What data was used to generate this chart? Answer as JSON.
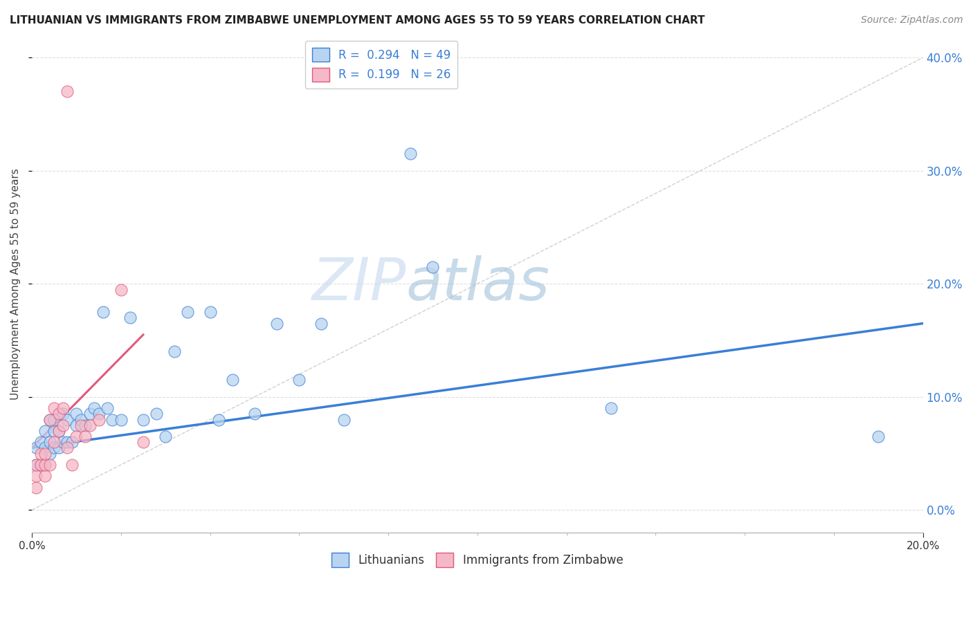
{
  "title": "LITHUANIAN VS IMMIGRANTS FROM ZIMBABWE UNEMPLOYMENT AMONG AGES 55 TO 59 YEARS CORRELATION CHART",
  "source": "Source: ZipAtlas.com",
  "ylabel": "Unemployment Among Ages 55 to 59 years",
  "xlim": [
    0,
    0.2
  ],
  "ylim": [
    -0.02,
    0.42
  ],
  "ylim_data": [
    0,
    0.4
  ],
  "xticks_major": [
    0.0,
    0.2
  ],
  "xticks_minor": [
    0.02,
    0.04,
    0.06,
    0.08,
    0.1,
    0.12,
    0.14,
    0.16,
    0.18
  ],
  "yticks": [
    0.0,
    0.1,
    0.2,
    0.3,
    0.4
  ],
  "legend_entries": [
    {
      "label_r": "R = ",
      "label_rv": "0.294",
      "label_n": "  N = ",
      "label_nv": "49"
    },
    {
      "label_r": "R = ",
      "label_rv": "0.199",
      "label_n": "  N = ",
      "label_nv": "26"
    }
  ],
  "legend_labels_bottom": [
    "Lithuanians",
    "Immigrants from Zimbabwe"
  ],
  "blue_scatter_x": [
    0.001,
    0.001,
    0.002,
    0.002,
    0.003,
    0.003,
    0.003,
    0.004,
    0.004,
    0.004,
    0.005,
    0.005,
    0.005,
    0.006,
    0.006,
    0.007,
    0.007,
    0.008,
    0.008,
    0.009,
    0.01,
    0.01,
    0.011,
    0.012,
    0.013,
    0.014,
    0.015,
    0.016,
    0.017,
    0.018,
    0.02,
    0.022,
    0.025,
    0.028,
    0.03,
    0.032,
    0.035,
    0.04,
    0.042,
    0.045,
    0.05,
    0.055,
    0.06,
    0.065,
    0.07,
    0.085,
    0.09,
    0.13,
    0.19
  ],
  "blue_scatter_y": [
    0.04,
    0.055,
    0.04,
    0.06,
    0.04,
    0.055,
    0.07,
    0.05,
    0.06,
    0.08,
    0.055,
    0.07,
    0.08,
    0.055,
    0.07,
    0.06,
    0.085,
    0.06,
    0.08,
    0.06,
    0.075,
    0.085,
    0.08,
    0.075,
    0.085,
    0.09,
    0.085,
    0.175,
    0.09,
    0.08,
    0.08,
    0.17,
    0.08,
    0.085,
    0.065,
    0.14,
    0.175,
    0.175,
    0.08,
    0.115,
    0.085,
    0.165,
    0.115,
    0.165,
    0.08,
    0.315,
    0.215,
    0.09,
    0.065
  ],
  "pink_scatter_x": [
    0.001,
    0.001,
    0.001,
    0.002,
    0.002,
    0.003,
    0.003,
    0.003,
    0.004,
    0.004,
    0.005,
    0.005,
    0.006,
    0.006,
    0.007,
    0.007,
    0.008,
    0.009,
    0.01,
    0.011,
    0.012,
    0.013,
    0.015,
    0.02,
    0.025,
    0.008
  ],
  "pink_scatter_y": [
    0.02,
    0.03,
    0.04,
    0.04,
    0.05,
    0.03,
    0.04,
    0.05,
    0.04,
    0.08,
    0.06,
    0.09,
    0.07,
    0.085,
    0.075,
    0.09,
    0.055,
    0.04,
    0.065,
    0.075,
    0.065,
    0.075,
    0.08,
    0.195,
    0.06,
    0.37
  ],
  "blue_line_x": [
    0.0,
    0.2
  ],
  "blue_line_y": [
    0.055,
    0.165
  ],
  "pink_line_x": [
    0.0,
    0.025
  ],
  "pink_line_y": [
    0.055,
    0.155
  ],
  "diag_line_x": [
    0.0,
    0.2
  ],
  "diag_line_y": [
    0.0,
    0.4
  ],
  "blue_color": "#b8d4f0",
  "pink_color": "#f5b8c8",
  "blue_line_color": "#3a7fd5",
  "pink_line_color": "#e05a7a",
  "diag_line_color": "#d0d0d0",
  "title_color": "#222222",
  "axis_label_color": "#444444",
  "tick_label_color_right": "#3a7fd5",
  "tick_label_color_x": "#333333",
  "background_color": "#ffffff",
  "grid_color": "#e0e0e0"
}
